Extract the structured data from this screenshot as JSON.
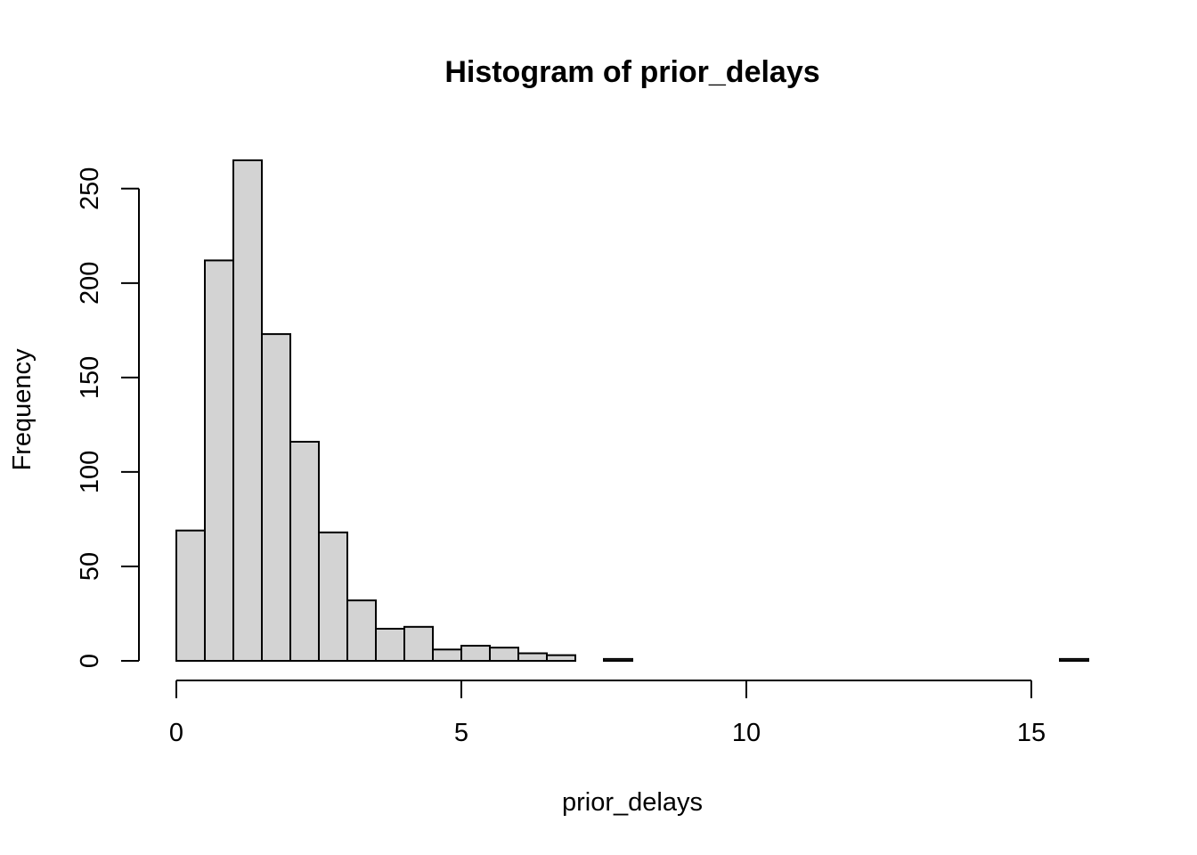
{
  "chart_data": {
    "type": "bar",
    "title": "Histogram of prior_delays",
    "xlabel": "prior_delays",
    "ylabel": "Frequency",
    "bin_width": 0.5,
    "bins": [
      {
        "x0": 0.0,
        "x1": 0.5,
        "count": 69
      },
      {
        "x0": 0.5,
        "x1": 1.0,
        "count": 212
      },
      {
        "x0": 1.0,
        "x1": 1.5,
        "count": 265
      },
      {
        "x0": 1.5,
        "x1": 2.0,
        "count": 173
      },
      {
        "x0": 2.0,
        "x1": 2.5,
        "count": 116
      },
      {
        "x0": 2.5,
        "x1": 3.0,
        "count": 68
      },
      {
        "x0": 3.0,
        "x1": 3.5,
        "count": 32
      },
      {
        "x0": 3.5,
        "x1": 4.0,
        "count": 17
      },
      {
        "x0": 4.0,
        "x1": 4.5,
        "count": 18
      },
      {
        "x0": 4.5,
        "x1": 5.0,
        "count": 6
      },
      {
        "x0": 5.0,
        "x1": 5.5,
        "count": 8
      },
      {
        "x0": 5.5,
        "x1": 6.0,
        "count": 7
      },
      {
        "x0": 6.0,
        "x1": 6.5,
        "count": 4
      },
      {
        "x0": 6.5,
        "x1": 7.0,
        "count": 3
      },
      {
        "x0": 7.0,
        "x1": 7.5,
        "count": 0
      },
      {
        "x0": 7.5,
        "x1": 8.0,
        "count": 1
      },
      {
        "x0": 8.0,
        "x1": 8.5,
        "count": 0
      },
      {
        "x0": 8.5,
        "x1": 9.0,
        "count": 0
      },
      {
        "x0": 9.0,
        "x1": 9.5,
        "count": 0
      },
      {
        "x0": 9.5,
        "x1": 10.0,
        "count": 0
      },
      {
        "x0": 10.0,
        "x1": 10.5,
        "count": 0
      },
      {
        "x0": 10.5,
        "x1": 11.0,
        "count": 0
      },
      {
        "x0": 11.0,
        "x1": 11.5,
        "count": 0
      },
      {
        "x0": 11.5,
        "x1": 12.0,
        "count": 0
      },
      {
        "x0": 12.0,
        "x1": 12.5,
        "count": 0
      },
      {
        "x0": 12.5,
        "x1": 13.0,
        "count": 0
      },
      {
        "x0": 13.0,
        "x1": 13.5,
        "count": 0
      },
      {
        "x0": 13.5,
        "x1": 14.0,
        "count": 0
      },
      {
        "x0": 14.0,
        "x1": 14.5,
        "count": 0
      },
      {
        "x0": 14.5,
        "x1": 15.0,
        "count": 0
      },
      {
        "x0": 15.0,
        "x1": 15.5,
        "count": 0
      },
      {
        "x0": 15.5,
        "x1": 16.0,
        "count": 1
      }
    ],
    "xticks": [
      0,
      5,
      10,
      15
    ],
    "xtick_labels": [
      "0",
      "5",
      "10",
      "15"
    ],
    "yticks": [
      0,
      50,
      100,
      150,
      200,
      250
    ],
    "ytick_labels": [
      "0",
      "50",
      "100",
      "150",
      "200",
      "250"
    ],
    "xlim": [
      0,
      16
    ],
    "ylim": [
      0,
      265
    ],
    "grid": false,
    "colors": {
      "bar_fill": "#d3d3d3",
      "bar_stroke": "#000000"
    }
  }
}
